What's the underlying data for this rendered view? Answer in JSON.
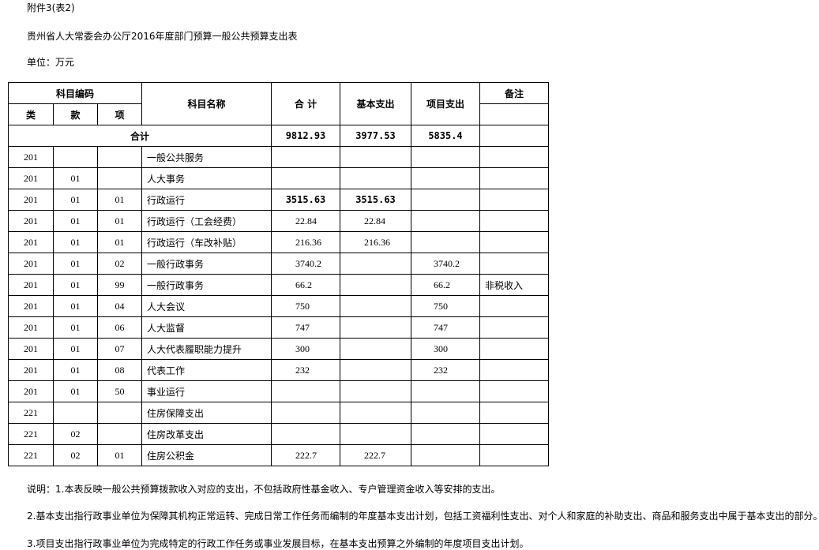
{
  "header": {
    "attachment": "附件3(表2)",
    "title": "贵州省人大常委会办公厅2016年度部门预算一般公共预算支出表",
    "unit": "单位：万元"
  },
  "table": {
    "headers": {
      "code": "科目编码",
      "lei": "类",
      "kuan": "款",
      "xiang": "项",
      "name": "科目名称",
      "total": "合 计",
      "basic": "基本支出",
      "project": "项目支出",
      "note": "备注"
    },
    "total_row": {
      "label": "合计",
      "total": "9812.93",
      "basic": "3977.53",
      "project": "5835.4"
    },
    "rows": [
      {
        "lei": "201",
        "kuan": "",
        "xiang": "",
        "name": "一般公共服务",
        "total": "",
        "basic": "",
        "project": "",
        "note": ""
      },
      {
        "lei": "201",
        "kuan": "01",
        "xiang": "",
        "name": "人大事务",
        "total": "",
        "basic": "",
        "project": "",
        "note": ""
      },
      {
        "lei": "201",
        "kuan": "01",
        "xiang": "01",
        "name": "行政运行",
        "total": "3515.63",
        "basic": "3515.63",
        "project": "",
        "note": ""
      },
      {
        "lei": "201",
        "kuan": "01",
        "xiang": "01",
        "name": "行政运行（工会经费）",
        "total": "22.84",
        "basic": "22.84",
        "project": "",
        "note": ""
      },
      {
        "lei": "201",
        "kuan": "01",
        "xiang": "01",
        "name": "行政运行（车改补贴）",
        "total": "216.36",
        "basic": "216.36",
        "project": "",
        "note": ""
      },
      {
        "lei": "201",
        "kuan": "01",
        "xiang": "02",
        "name": "一般行政事务",
        "total": "3740.2",
        "basic": "",
        "project": "3740.2",
        "note": ""
      },
      {
        "lei": "201",
        "kuan": "01",
        "xiang": "99",
        "name": "一般行政事务",
        "total": "66.2",
        "basic": "",
        "project": "66.2",
        "note": "非税收入"
      },
      {
        "lei": "201",
        "kuan": "01",
        "xiang": "04",
        "name": "人大会议",
        "total": "750",
        "basic": "",
        "project": "750",
        "note": ""
      },
      {
        "lei": "201",
        "kuan": "01",
        "xiang": "06",
        "name": "人大监督",
        "total": "747",
        "basic": "",
        "project": "747",
        "note": ""
      },
      {
        "lei": "201",
        "kuan": "01",
        "xiang": "07",
        "name": "人大代表履职能力提升",
        "total": "300",
        "basic": "",
        "project": "300",
        "note": ""
      },
      {
        "lei": "201",
        "kuan": "01",
        "xiang": "08",
        "name": "代表工作",
        "total": "232",
        "basic": "",
        "project": "232",
        "note": ""
      },
      {
        "lei": "201",
        "kuan": "01",
        "xiang": "50",
        "name": "事业运行",
        "total": "",
        "basic": "",
        "project": "",
        "note": ""
      },
      {
        "lei": "221",
        "kuan": "",
        "xiang": "",
        "name": "住房保障支出",
        "total": "",
        "basic": "",
        "project": "",
        "note": ""
      },
      {
        "lei": "221",
        "kuan": "02",
        "xiang": "",
        "name": "住房改革支出",
        "total": "",
        "basic": "",
        "project": "",
        "note": ""
      },
      {
        "lei": "221",
        "kuan": "02",
        "xiang": "01",
        "name": "住房公积金",
        "total": "222.7",
        "basic": "222.7",
        "project": "",
        "note": ""
      }
    ]
  },
  "notes": [
    "说明：1.本表反映一般公共预算拨款收入对应的支出，不包括政府性基金收入、专户管理资金收入等安排的支出。",
    "2.基本支出指行政事业单位为保障其机构正常运转、完成日常工作任务而编制的年度基本支出计划，包括工资福利性支出、对个人和家庭的补助支出、商品和服务支出中属于基本支出的部分。",
    "3.项目支出指行政事业单位为完成特定的行政工作任务或事业发展目标，在基本支出预算之外编制的年度项目支出计划。"
  ]
}
